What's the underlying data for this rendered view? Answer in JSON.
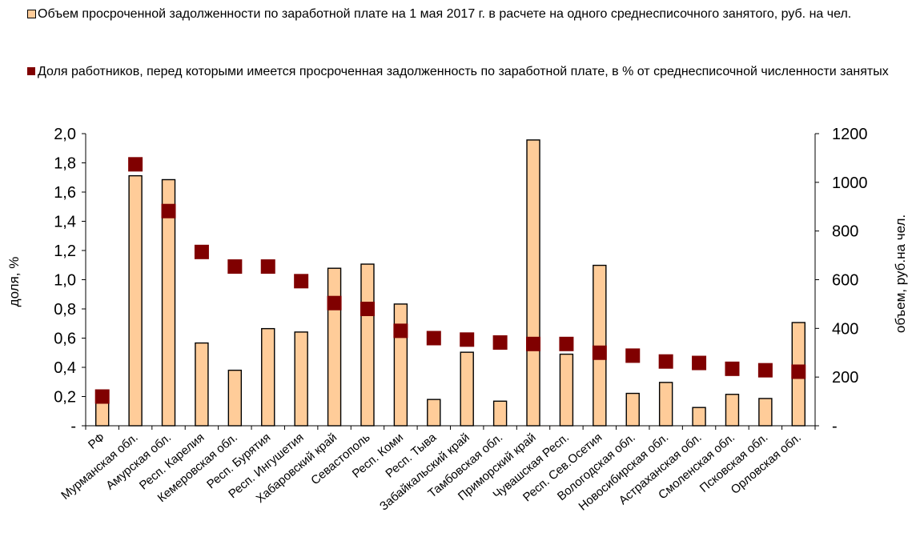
{
  "legend": {
    "bars": "Объем просроченной задолженности по заработной плате на 1 мая 2017 г. в расчете на одного среднесписочного занятого, руб. на чел.",
    "points": "Доля работников, перед которыми имеется просроченная задолженность по заработной плате, в % от среднесписочной численности занятых"
  },
  "chart_data": {
    "type": "bar",
    "categories": [
      "РФ",
      "Мурманская обл.",
      "Амурская обл.",
      "Респ. Карелия",
      "Кемеровская обл.",
      "Респ. Бурятия",
      "Респ. Ингушетия",
      "Хабаровский край",
      "Севастополь",
      "Респ. Коми",
      "Респ. Тыва",
      "Забайкальский край",
      "Тамбовская обл.",
      "Приморский край",
      "Чувашская Респ.",
      "Респ. Сев.Осетия",
      "Вологодская обл.",
      "Новосибирская обл.",
      "Астраханская обл.",
      "Смоленская обл.",
      "Псковская обл.",
      "Орловская обл."
    ],
    "series": [
      {
        "name": "Объем просроченной задолженности по заработной плате на 1 мая 2017 г. в расчете на одного среднесписочного занятого, руб. на чел.",
        "kind": "bar",
        "axis": "right",
        "color": "#ffcc99",
        "values": [
          118,
          1027,
          1011,
          340,
          228,
          399,
          385,
          647,
          664,
          500,
          108,
          302,
          101,
          1174,
          294,
          659,
          133,
          178,
          75,
          129,
          112,
          424
        ]
      },
      {
        "name": "Доля работников, перед которыми имеется просроченная задолженность по заработной плате, в % от среднесписочной численности занятых",
        "kind": "marker",
        "axis": "left",
        "color": "#800000",
        "values": [
          0.2,
          1.79,
          1.47,
          1.19,
          1.09,
          1.09,
          0.99,
          0.84,
          0.8,
          0.65,
          0.6,
          0.59,
          0.57,
          0.56,
          0.56,
          0.5,
          0.48,
          0.44,
          0.43,
          0.39,
          0.38,
          0.37
        ]
      }
    ],
    "y_left": {
      "label": "доля, %",
      "ylim": [
        0,
        2
      ],
      "ticks": [
        0,
        0.2,
        0.4,
        0.6,
        0.8,
        1.0,
        1.2,
        1.4,
        1.6,
        1.8,
        2.0
      ],
      "tick_labels": [
        "-",
        "0,2",
        "0,4",
        "0,6",
        "0,8",
        "1,0",
        "1,2",
        "1,4",
        "1,6",
        "1,8",
        "2,0"
      ]
    },
    "y_right": {
      "label": "объем, руб.на чел.",
      "ylim": [
        0,
        1200
      ],
      "ticks": [
        0,
        200,
        400,
        600,
        800,
        1000,
        1200
      ],
      "tick_labels": [
        "-",
        "200",
        "400",
        "600",
        "800",
        "1000",
        "1200"
      ]
    },
    "grid": false,
    "legend_position": "top"
  }
}
